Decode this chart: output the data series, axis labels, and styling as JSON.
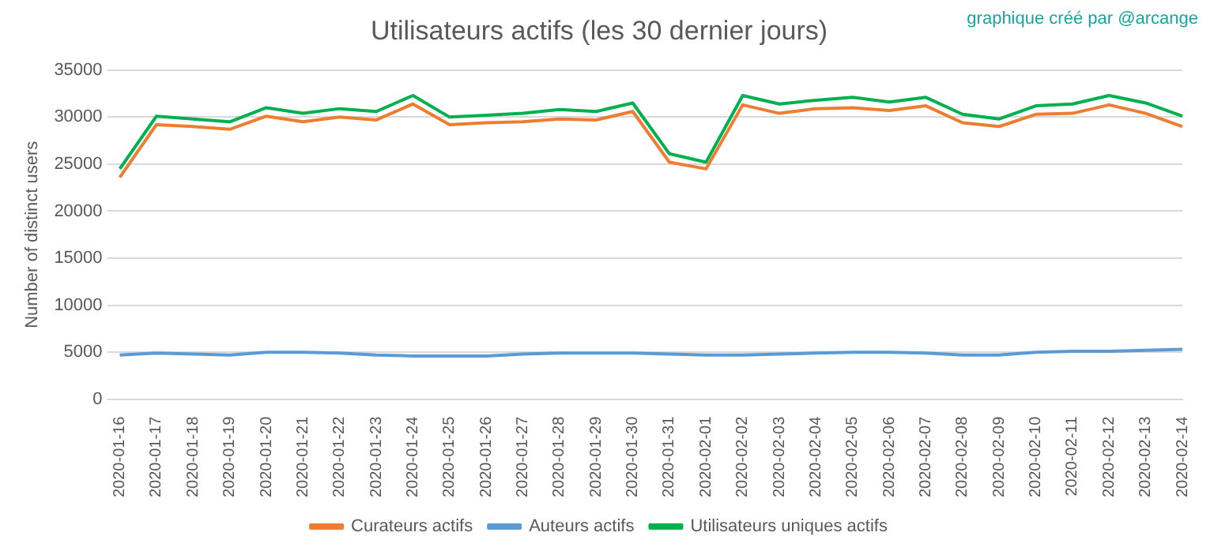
{
  "chart_data": {
    "type": "line",
    "title": "Utilisateurs actifs (les 30 dernier jours)",
    "ylabel": "Number of distinct users",
    "annotations": [
      "graphique créé par @arcange"
    ],
    "categories": [
      "2020-01-16",
      "2020-01-17",
      "2020-01-18",
      "2020-01-19",
      "2020-01-20",
      "2020-01-21",
      "2020-01-22",
      "2020-01-23",
      "2020-01-24",
      "2020-01-25",
      "2020-01-26",
      "2020-01-27",
      "2020-01-28",
      "2020-01-29",
      "2020-01-30",
      "2020-01-31",
      "2020-02-01",
      "2020-02-02",
      "2020-02-03",
      "2020-02-04",
      "2020-02-05",
      "2020-02-06",
      "2020-02-07",
      "2020-02-08",
      "2020-02-09",
      "2020-02-10",
      "2020-02-11",
      "2020-02-12",
      "2020-02-13",
      "2020-02-14"
    ],
    "series": [
      {
        "name": "Curateurs actifs",
        "color": "#ed7d31",
        "values": [
          23600,
          29200,
          29000,
          28700,
          30100,
          29500,
          30000,
          29700,
          31400,
          29200,
          29400,
          29500,
          29800,
          29700,
          30600,
          25200,
          24500,
          31300,
          30400,
          30900,
          31000,
          30700,
          31200,
          29400,
          29000,
          30300,
          30400,
          31300,
          30400,
          29000
        ]
      },
      {
        "name": "Auteurs actifs",
        "color": "#5b9bd5",
        "values": [
          4700,
          4900,
          4800,
          4700,
          5000,
          5000,
          4900,
          4700,
          4600,
          4600,
          4600,
          4800,
          4900,
          4900,
          4900,
          4800,
          4700,
          4700,
          4800,
          4900,
          5000,
          5000,
          4900,
          4700,
          4700,
          5000,
          5100,
          5100,
          5200,
          5300
        ]
      },
      {
        "name": "Utilisateurs uniques actifs",
        "color": "#00b050",
        "values": [
          24500,
          30100,
          29800,
          29500,
          31000,
          30400,
          30900,
          30600,
          32300,
          30000,
          30200,
          30400,
          30800,
          30600,
          31500,
          26100,
          25200,
          32300,
          31400,
          31800,
          32100,
          31600,
          32100,
          30300,
          29800,
          31200,
          31400,
          32300,
          31500,
          30100
        ]
      }
    ],
    "ylim": [
      0,
      35000
    ],
    "yticks": [
      0,
      5000,
      10000,
      15000,
      20000,
      25000,
      30000,
      35000
    ],
    "grid": "y",
    "legend": "bottom",
    "marker": "none",
    "line_style": "solid"
  }
}
